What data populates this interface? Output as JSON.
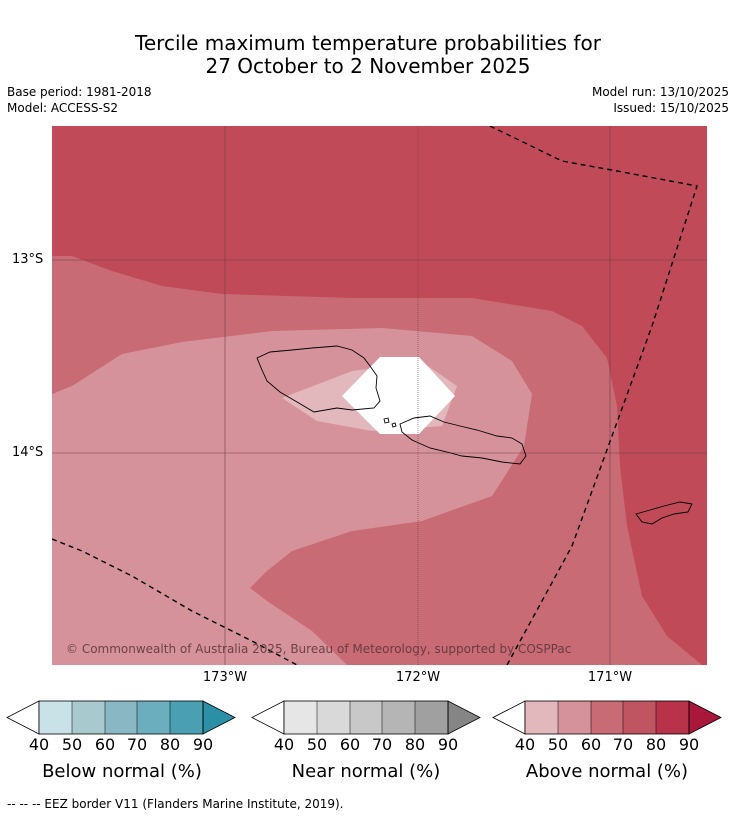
{
  "title": {
    "line1": "Tercile maximum temperature probabilities for",
    "line2": "27 October to 2 November 2025"
  },
  "meta": {
    "base_period": "Base period: 1981-2018",
    "model": "Model: ACCESS-S2",
    "model_run": "Model run: 13/10/2025",
    "issued": "Issued: 15/10/2025"
  },
  "map": {
    "copyright": "© Commonwealth of Australia 2025, Bureau of Meteorology, supported by COSPPac",
    "lat_labels": [
      "13°S",
      "14°S"
    ],
    "lon_labels": [
      "173°W",
      "172°W",
      "171°W"
    ]
  },
  "colorbars": [
    {
      "title": "Below normal (%)",
      "ticks": [
        "40",
        "50",
        "60",
        "70",
        "80",
        "90"
      ],
      "colors": [
        "#ffffff",
        "#c9e2e8",
        "#a8c9ce",
        "#89b8c4",
        "#6baebd",
        "#4aa0b2",
        "#2b8fa6"
      ]
    },
    {
      "title": "Near normal (%)",
      "ticks": [
        "40",
        "50",
        "60",
        "70",
        "80",
        "90"
      ],
      "colors": [
        "#ffffff",
        "#e6e6e6",
        "#d9d9d9",
        "#c8c8c8",
        "#b5b5b5",
        "#a0a0a0",
        "#858585"
      ]
    },
    {
      "title": "Above normal (%)",
      "ticks": [
        "40",
        "50",
        "60",
        "70",
        "80",
        "90"
      ],
      "colors": [
        "#ffffff",
        "#e3b8bc",
        "#d6929a",
        "#c96b75",
        "#c05562",
        "#b8334a",
        "#a9183a"
      ]
    }
  ],
  "footer": "--  --  -- EEZ border V11 (Flanders Marine Institute, 2019)."
}
